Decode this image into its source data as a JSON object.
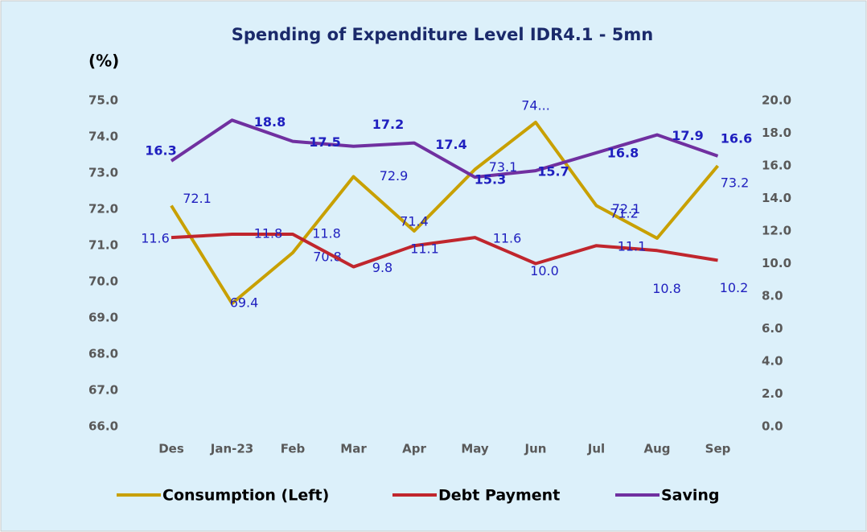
{
  "chart_data": {
    "type": "line",
    "title": "Spending of Expenditure Level IDR4.1 - 5mn",
    "y_label": "(%)",
    "categories": [
      "Des",
      "Jan-23",
      "Feb",
      "Mar",
      "Apr",
      "May",
      "Jun",
      "Jul",
      "Aug",
      "Sep"
    ],
    "series": [
      {
        "name": "Consumption (Left)",
        "color": "#c8a000",
        "values": [
          72.1,
          69.4,
          70.8,
          72.9,
          71.4,
          73.1,
          74.4,
          72.1,
          71.2,
          73.2
        ],
        "value_labels": [
          "72.1",
          "69.4",
          "70.8",
          "72.9",
          "71.4",
          "73.1",
          "74...",
          "72.1",
          "71.2",
          "73.2"
        ]
      },
      {
        "name": "Debt Payment",
        "color": "#c0262d",
        "axis": "y2",
        "values": [
          11.6,
          11.8,
          11.8,
          9.8,
          11.1,
          11.6,
          10.0,
          11.1,
          10.8,
          10.2
        ],
        "value_labels": [
          "11.6",
          "11.8",
          "11.8",
          "9.8",
          "11.1",
          "11.6",
          "10.0",
          "11.1",
          "10.8",
          "10.2"
        ]
      },
      {
        "name": "Saving",
        "color": "#7030a0",
        "axis": "y2",
        "values": [
          16.3,
          18.8,
          17.5,
          17.2,
          17.4,
          15.3,
          15.7,
          16.8,
          17.9,
          16.6
        ]
      }
    ],
    "ylim": [
      66,
      75
    ],
    "yticks": [
      {
        "value": 66,
        "label": "66.0"
      },
      {
        "value": 67,
        "label": "67.0"
      },
      {
        "value": 68,
        "label": "68.0"
      },
      {
        "value": 69,
        "label": "69.0"
      },
      {
        "value": 70,
        "label": "70.0"
      },
      {
        "value": 71,
        "label": "71.0"
      },
      {
        "value": 72,
        "label": "72.0"
      },
      {
        "value": 73,
        "label": "73.0"
      },
      {
        "value": 74,
        "label": "74.0"
      },
      {
        "value": 75,
        "label": "75.0"
      }
    ],
    "y2lim": [
      0,
      20
    ],
    "y2ticks": [
      {
        "value": 0,
        "label": "0.0"
      },
      {
        "value": 2,
        "label": "2.0"
      },
      {
        "value": 4,
        "label": "4.0"
      },
      {
        "value": 6,
        "label": "6.0"
      },
      {
        "value": 8,
        "label": "8.0"
      },
      {
        "value": 10,
        "label": "10.0"
      },
      {
        "value": 12,
        "label": "12.0"
      },
      {
        "value": 14,
        "label": "14.0"
      },
      {
        "value": 16,
        "label": "16.0"
      },
      {
        "value": 18,
        "label": "18.0"
      },
      {
        "value": 20,
        "label": "20.0"
      }
    ],
    "grid": false,
    "legend": "bottom"
  }
}
